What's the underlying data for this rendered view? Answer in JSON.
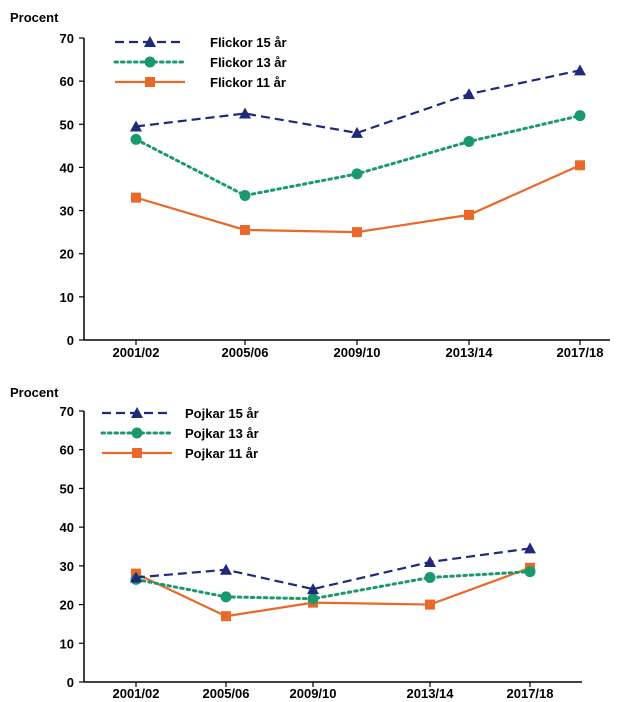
{
  "chart_data": [
    {
      "type": "line",
      "ylabel": "Procent",
      "ylim": [
        0,
        70
      ],
      "yticks": [
        0,
        10,
        20,
        30,
        40,
        50,
        60,
        70
      ],
      "categories": [
        "2001/02",
        "2005/06",
        "2009/10",
        "2013/14",
        "2017/18"
      ],
      "legend_position": "top-left",
      "series": [
        {
          "name": "Flickor 15 år",
          "values": [
            49.5,
            52.5,
            48,
            57,
            62.5
          ],
          "color": "#1f2a7a",
          "style": "dashed",
          "marker": "triangle"
        },
        {
          "name": "Flickor 13 år",
          "values": [
            46.5,
            33.5,
            38.5,
            46,
            52
          ],
          "color": "#1a9a6c",
          "style": "dotted",
          "marker": "circle"
        },
        {
          "name": "Flickor 11 år",
          "values": [
            33,
            25.5,
            25,
            29,
            40.5
          ],
          "color": "#e8692a",
          "style": "solid",
          "marker": "square"
        }
      ]
    },
    {
      "type": "line",
      "ylabel": "Procent",
      "ylim": [
        0,
        70
      ],
      "yticks": [
        0,
        10,
        20,
        30,
        40,
        50,
        60,
        70
      ],
      "categories": [
        "2001/02",
        "2005/06",
        "2009/10",
        "2013/14",
        "2017/18"
      ],
      "legend_position": "top-left",
      "series": [
        {
          "name": "Pojkar 15 år",
          "values": [
            27,
            29,
            24,
            31,
            34.5
          ],
          "color": "#1f2a7a",
          "style": "dashed",
          "marker": "triangle"
        },
        {
          "name": "Pojkar 13 år",
          "values": [
            26.5,
            22,
            21.5,
            27,
            28.5
          ],
          "color": "#1a9a6c",
          "style": "dotted",
          "marker": "circle"
        },
        {
          "name": "Pojkar 11 år",
          "values": [
            28,
            17,
            20.5,
            20,
            29.5
          ],
          "color": "#e8692a",
          "style": "solid",
          "marker": "square"
        }
      ]
    }
  ]
}
